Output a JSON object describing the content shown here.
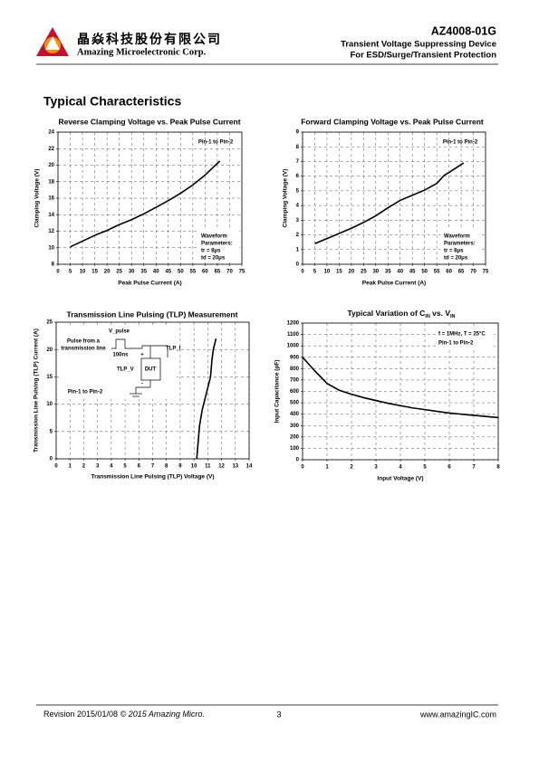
{
  "header": {
    "company_cn": "晶焱科技股份有限公司",
    "company_en": "Amazing Microelectronic Corp.",
    "part_number": "AZ4008-01G",
    "line1": "Transient Voltage Suppressing Device",
    "line2": "For ESD/Surge/Transient Protection"
  },
  "section_title": "Typical Characteristics",
  "chart_data": [
    {
      "type": "line",
      "title": "Reverse Clamping Voltage vs. Peak Pulse Current",
      "x_label": "Peak Pulse Current (A)",
      "y_label": "Clamping Voltage (V)",
      "x": [
        5,
        10,
        15,
        20,
        25,
        30,
        35,
        40,
        45,
        50,
        55,
        60,
        66
      ],
      "series": [
        {
          "color": "#000000",
          "values": [
            10.1,
            10.8,
            11.5,
            12.1,
            12.8,
            13.4,
            14.1,
            14.9,
            15.7,
            16.6,
            17.6,
            18.8,
            20.5
          ]
        }
      ],
      "xlim": [
        0,
        75
      ],
      "xticks": [
        0,
        5,
        10,
        15,
        20,
        25,
        30,
        35,
        40,
        45,
        50,
        55,
        60,
        65,
        70,
        75
      ],
      "ylim": [
        8,
        24
      ],
      "yticks": [
        8,
        10,
        12,
        14,
        16,
        18,
        20,
        22,
        24
      ],
      "grid": true,
      "annotations": [
        "Pin-1 to Pin-2",
        "Waveform",
        "Parameters:",
        "tr = 8μs",
        "td = 20μs"
      ]
    },
    {
      "type": "line",
      "title": "Forward Clamping Voltage vs. Peak Pulse Current",
      "x_label": "Peak Pulse Current (A)",
      "y_label": "Clamping Voltage (V)",
      "x": [
        5,
        10,
        15,
        20,
        25,
        30,
        35,
        40,
        45,
        50,
        55,
        58,
        60,
        66
      ],
      "series": [
        {
          "color": "#000000",
          "values": [
            1.4,
            1.75,
            2.1,
            2.45,
            2.85,
            3.3,
            3.85,
            4.35,
            4.7,
            5.05,
            5.5,
            6.05,
            6.25,
            6.9
          ]
        }
      ],
      "xlim": [
        0,
        75
      ],
      "xticks": [
        0,
        5,
        10,
        15,
        20,
        25,
        30,
        35,
        40,
        45,
        50,
        55,
        60,
        65,
        70,
        75
      ],
      "ylim": [
        0,
        9
      ],
      "yticks": [
        0,
        1,
        2,
        3,
        4,
        5,
        6,
        7,
        8,
        9
      ],
      "grid": true,
      "annotations": [
        "Pin-1 to Pin-2",
        "Waveform",
        "Parameters:",
        "tr = 8μs",
        "td = 20μs"
      ]
    },
    {
      "type": "line",
      "title": "Transmission Line Pulsing (TLP) Measurement",
      "x_label": "Transmission Line Pulsing (TLP) Voltage (V)",
      "y_label": "Transmission Line Pulsing (TLP) Current (A)",
      "x": [
        10.2,
        10.3,
        10.4,
        10.6,
        10.9,
        11.2,
        11.3,
        11.4,
        11.6
      ],
      "series": [
        {
          "color": "#000000",
          "values": [
            0,
            3,
            6,
            9,
            12,
            15,
            18,
            20,
            22
          ]
        }
      ],
      "xlim": [
        0,
        14
      ],
      "xticks": [
        0,
        1,
        2,
        3,
        4,
        5,
        6,
        7,
        8,
        9,
        10,
        11,
        12,
        13,
        14
      ],
      "ylim": [
        0,
        25
      ],
      "yticks": [
        0,
        5,
        10,
        15,
        20,
        25
      ],
      "grid": true,
      "annotations": [
        "V_pulse",
        "Pulse from a",
        "transmission line",
        "100ns",
        "+",
        "TLP_I",
        "TLP_V",
        "DUT",
        "-",
        "Pin-1 to Pin-2"
      ]
    },
    {
      "type": "line",
      "title": [
        "Typical Variation of C",
        "IN",
        " vs. V",
        "IN"
      ],
      "x_label": "Input Voltage (V)",
      "y_label": "Input Capacitance (pF)",
      "x": [
        0,
        0.5,
        1,
        1.5,
        2,
        2.5,
        3,
        3.5,
        4,
        4.5,
        5,
        5.5,
        6,
        6.5,
        7,
        7.5,
        8
      ],
      "series": [
        {
          "color": "#000000",
          "values": [
            900,
            780,
            670,
            610,
            575,
            545,
            520,
            495,
            475,
            455,
            440,
            425,
            410,
            400,
            390,
            380,
            370
          ]
        }
      ],
      "xlim": [
        0,
        8
      ],
      "xticks": [
        0,
        1,
        2,
        3,
        4,
        5,
        6,
        7,
        8
      ],
      "ylim": [
        0,
        1200
      ],
      "yticks": [
        0,
        100,
        200,
        300,
        400,
        500,
        600,
        700,
        800,
        900,
        1000,
        1100,
        1200
      ],
      "grid": true,
      "annotations": [
        "f = 1MHz, T = 25°C",
        "Pin-1 to Pin-2"
      ]
    }
  ],
  "footer": {
    "revision": "Revision 2015/01/08",
    "copyright": "© 2015 Amazing Micro.",
    "page": "3",
    "website": "www.amazingIC.com"
  }
}
